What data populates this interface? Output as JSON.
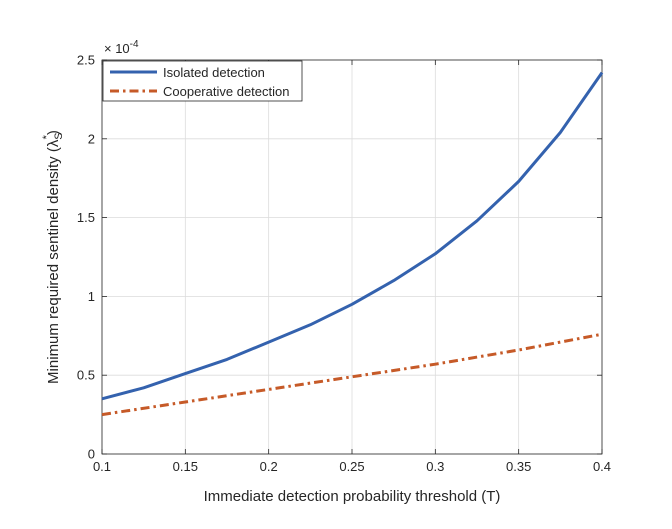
{
  "chart_data": {
    "type": "line",
    "title": "",
    "xlabel": "Immediate detection probability threshold (T)",
    "ylabel_main": "Minimum required sentinel density (λ",
    "ylabel_sub": "S",
    "ylabel_sup": "*",
    "ylabel_close": ")",
    "y_exponent_label": "× 10",
    "y_exponent_power": "-4",
    "xlim": [
      0.1,
      0.4
    ],
    "ylim": [
      0,
      2.5
    ],
    "x_ticks": [
      0.1,
      0.15,
      0.2,
      0.25,
      0.3,
      0.35,
      0.4
    ],
    "x_tick_labels": [
      "0.1",
      "0.15",
      "0.2",
      "0.25",
      "0.3",
      "0.35",
      "0.4"
    ],
    "y_ticks": [
      0,
      0.5,
      1,
      1.5,
      2,
      2.5
    ],
    "y_tick_labels": [
      "0",
      "0.5",
      "1",
      "1.5",
      "2",
      "2.5"
    ],
    "grid": true,
    "legend_position": "top-left",
    "series": [
      {
        "name": "Isolated detection",
        "color": "#3462AE",
        "style": "solid",
        "x": [
          0.1,
          0.125,
          0.15,
          0.175,
          0.2,
          0.225,
          0.25,
          0.275,
          0.3,
          0.325,
          0.35,
          0.375,
          0.4
        ],
        "values": [
          0.35,
          0.42,
          0.51,
          0.6,
          0.71,
          0.82,
          0.95,
          1.1,
          1.27,
          1.48,
          1.73,
          2.04,
          2.42
        ]
      },
      {
        "name": "Cooperative detection",
        "color": "#C65A28",
        "style": "dashdot",
        "x": [
          0.1,
          0.15,
          0.2,
          0.25,
          0.3,
          0.35,
          0.4
        ],
        "values": [
          0.25,
          0.33,
          0.41,
          0.49,
          0.57,
          0.66,
          0.76
        ]
      }
    ]
  }
}
